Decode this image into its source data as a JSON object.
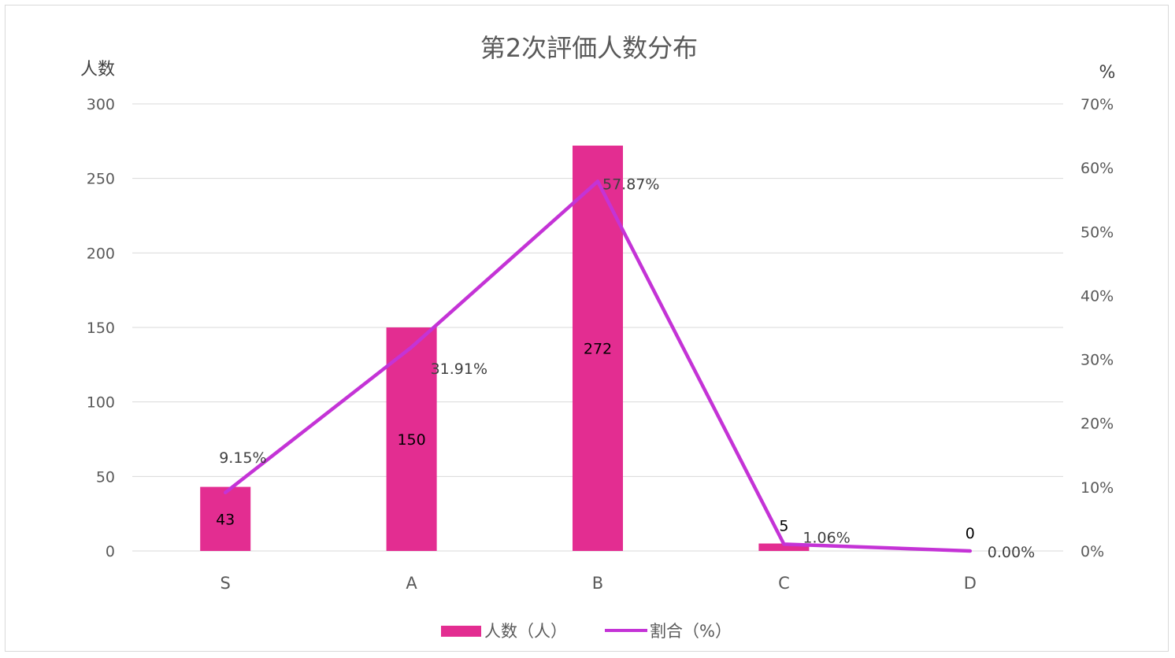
{
  "chart_data": {
    "type": "bar",
    "title": "第2次評価人数分布",
    "ylabel_left": "人数",
    "ylabel_right": "%",
    "categories": [
      "S",
      "A",
      "B",
      "C",
      "D"
    ],
    "ylim_left": [
      0,
      300
    ],
    "ylim_right": [
      0,
      0.7
    ],
    "left_ticks": [
      "0",
      "50",
      "100",
      "150",
      "200",
      "250",
      "300"
    ],
    "right_ticks": [
      "0%",
      "10%",
      "20%",
      "30%",
      "40%",
      "50%",
      "60%",
      "70%"
    ],
    "grid": true,
    "legend_position": "bottom",
    "series": [
      {
        "name": "人数（人）",
        "type": "bar",
        "axis": "left",
        "color": "#e32d91",
        "values": [
          43,
          150,
          272,
          5,
          0
        ],
        "labels": [
          "43",
          "150",
          "272",
          "5",
          "0"
        ]
      },
      {
        "name": "割合（%）",
        "type": "line",
        "axis": "right",
        "color": "#c433d6",
        "values": [
          0.0915,
          0.3191,
          0.5787,
          0.0106,
          0.0
        ],
        "labels": [
          "9.15%",
          "31.91%",
          "57.87%",
          "1.06%",
          "0.00%"
        ]
      }
    ]
  }
}
